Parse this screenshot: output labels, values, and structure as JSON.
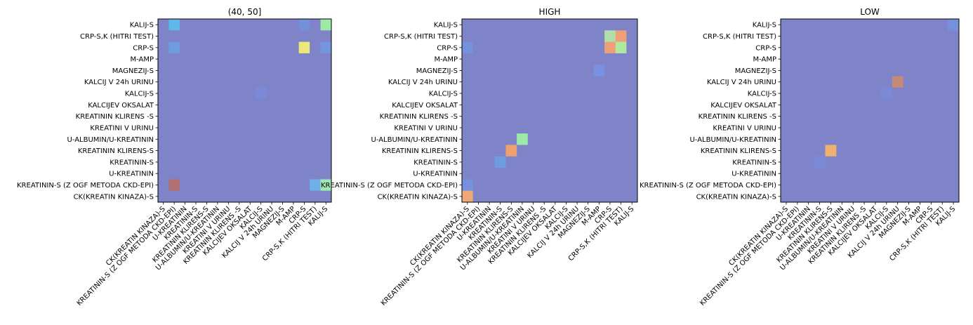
{
  "figure": {
    "colors": {
      "base": "#7f84c9",
      "frame": "#000000",
      "text": "#000000"
    }
  },
  "chart_data": [
    {
      "type": "heatmap",
      "title": "(40, 50]",
      "y_categories": [
        "KALIJ-S",
        "CRP-S,K (HITRI TEST)",
        "CRP-S",
        "M-AMP",
        "MAGNEZIJ-S",
        "KALCIJ V 24h URINU",
        "KALCIJ-S",
        "KALCIJEV OKSALAT",
        "KREATININ KLIRENS -S",
        "KREATINI V URINU",
        "U-ALBUMIN/U-KREATININ",
        "KREATININ KLIRENS-S",
        "KREATININ-S",
        "U-KREATININ",
        "KREATININ-S (Z OGF METODA CKD-EPI)",
        "CK(KREATIN KINAZA)-S"
      ],
      "x_categories": [
        "CK(KREATIN KINAZA)-S",
        "KREATININ-S (Z OGF METODA CKD-EPI)",
        "U-KREATININ",
        "KREATININ-S",
        "KREATININ KLIRENS-S",
        "U-ALBUMIN/U-KREATININ",
        "KREATINI V URINU",
        "KREATININ KLIRENS -S",
        "KALCIJEV OKSALAT",
        "KALCIJ-S",
        "KALCIJ V 24h URINU",
        "MAGNEZIJ-S",
        "M-AMP",
        "CRP-S",
        "CRP-S,K (HITRI TEST)",
        "KALIJ-S"
      ],
      "highlights": [
        {
          "row": 0,
          "col": 1,
          "color": "#5fb8e8"
        },
        {
          "row": 0,
          "col": 15,
          "color": "#9ee8a8"
        },
        {
          "row": 2,
          "col": 1,
          "color": "#6f9cdf"
        },
        {
          "row": 2,
          "col": 13,
          "color": "#eee87a"
        },
        {
          "row": 2,
          "col": 15,
          "color": "#7496e0"
        },
        {
          "row": 14,
          "col": 1,
          "color": "#b07070"
        },
        {
          "row": 14,
          "col": 14,
          "color": "#6fb0e8"
        },
        {
          "row": 14,
          "col": 15,
          "color": "#9ee8b4"
        },
        {
          "row": 0,
          "col": 13,
          "color": "#7590da"
        },
        {
          "row": 6,
          "col": 9,
          "color": "#7a8ad8"
        }
      ]
    },
    {
      "type": "heatmap",
      "title": "HIGH",
      "y_categories": [
        "KALIJ-S",
        "CRP-S,K (HITRI TEST)",
        "CRP-S",
        "M-AMP",
        "MAGNEZIJ-S",
        "KALCIJ V 24h URINU",
        "KALCIJ-S",
        "KALCIJEV OKSALAT",
        "KREATININ KLIRENS -S",
        "KREATINI V URINU",
        "U-ALBUMIN/U-KREATININ",
        "KREATININ KLIRENS-S",
        "KREATININ-S",
        "U-KREATININ",
        "KREATININ-S (Z OGF METODA CKD-EPI)",
        "CK(KREATIN KINAZA)-S"
      ],
      "x_categories": [
        "CK(KREATIN KINAZA)-S",
        "KREATININ-S (Z OGF METODA CKD-EPI)",
        "U-KREATININ",
        "KREATININ-S",
        "KREATININ KLIRENS-S",
        "U-ALBUMIN/U-KREATININ",
        "KREATINI V URINU",
        "KREATININ KLIRENS -S",
        "KALCIJEV OKSALAT",
        "KALCIJ-S",
        "KALCIJ V 24h URINU",
        "MAGNEZIJ-S",
        "M-AMP",
        "CRP-S",
        "CRP-S,K (HITRI TEST)",
        "KALIJ-S"
      ],
      "highlights": [
        {
          "row": 1,
          "col": 13,
          "color": "#b0e0a8"
        },
        {
          "row": 1,
          "col": 14,
          "color": "#f0a078"
        },
        {
          "row": 2,
          "col": 13,
          "color": "#f0a078"
        },
        {
          "row": 2,
          "col": 14,
          "color": "#b0e8a0"
        },
        {
          "row": 2,
          "col": 0,
          "color": "#7590dc"
        },
        {
          "row": 10,
          "col": 5,
          "color": "#9ee8a8"
        },
        {
          "row": 11,
          "col": 4,
          "color": "#f0a070"
        },
        {
          "row": 12,
          "col": 3,
          "color": "#6f9ce0"
        },
        {
          "row": 15,
          "col": 0,
          "color": "#f0a878"
        },
        {
          "row": 14,
          "col": 0,
          "color": "#7590dc"
        },
        {
          "row": 4,
          "col": 12,
          "color": "#7a90e0"
        }
      ]
    },
    {
      "type": "heatmap",
      "title": "LOW",
      "y_categories": [
        "KALIJ-S",
        "CRP-S,K (HITRI TEST)",
        "CRP-S",
        "M-AMP",
        "MAGNEZIJ-S",
        "KALCIJ V 24h URINU",
        "KALCIJ-S",
        "KALCIJEV OKSALAT",
        "KREATININ KLIRENS -S",
        "KREATINI V URINU",
        "U-ALBUMIN/U-KREATININ",
        "KREATININ KLIRENS-S",
        "KREATININ-S",
        "U-KREATININ",
        "KREATININ-S (Z OGF METODA CKD-EPI)",
        "CK(KREATIN KINAZA)-S"
      ],
      "x_categories": [
        "CK(KREATIN KINAZA)-S",
        "KREATININ-S (Z OGF METODA CKD-EPI)",
        "U-KREATININ",
        "KREATININ-S",
        "KREATININ KLIRENS-S",
        "U-ALBUMIN/U-KREATININ",
        "KREATINI V URINU",
        "KREATININ KLIRENS -S",
        "KALCIJEV OKSALAT",
        "KALCIJ-S",
        "KALCIJ V 24h URINU",
        "MAGNEZIJ-S",
        "M-AMP",
        "CRP-S",
        "CRP-S,K (HITRI TEST)",
        "KALIJ-S"
      ],
      "highlights": [
        {
          "row": 0,
          "col": 15,
          "color": "#7590dc"
        },
        {
          "row": 5,
          "col": 10,
          "color": "#c48a78"
        },
        {
          "row": 6,
          "col": 9,
          "color": "#7a8ad8"
        },
        {
          "row": 11,
          "col": 4,
          "color": "#f0b070"
        },
        {
          "row": 12,
          "col": 3,
          "color": "#7a8ad8"
        }
      ]
    }
  ]
}
